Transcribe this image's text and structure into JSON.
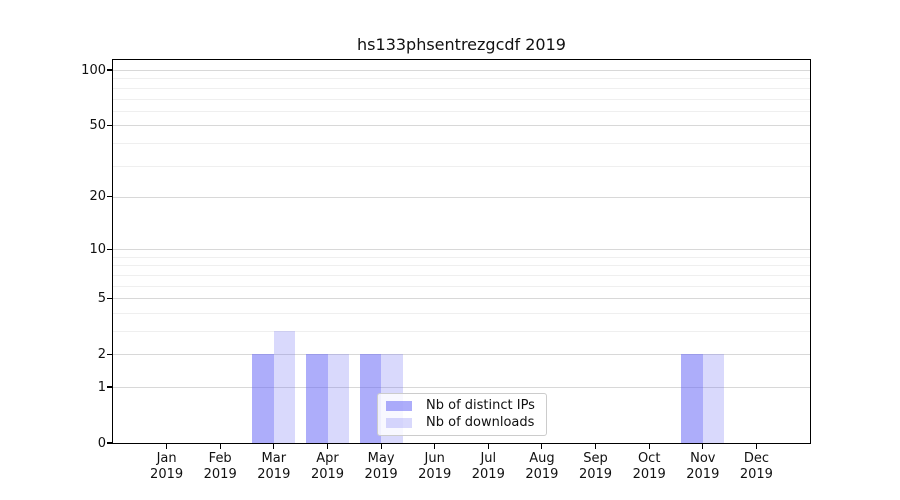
{
  "chart_data": {
    "type": "bar",
    "title": "hs133phsentrezgcdf 2019",
    "year_label": "2019",
    "categories": [
      "Jan",
      "Feb",
      "Mar",
      "Apr",
      "May",
      "Jun",
      "Jul",
      "Aug",
      "Sep",
      "Oct",
      "Nov",
      "Dec"
    ],
    "series": [
      {
        "name": "Nb of distinct IPs",
        "color": "rgba(105,105,245,0.55)",
        "values": [
          0,
          0,
          2,
          2,
          2,
          0,
          0,
          0,
          0,
          0,
          2,
          0
        ]
      },
      {
        "name": "Nb of downloads",
        "color": "rgba(105,105,245,0.25)",
        "values": [
          0,
          0,
          3,
          2,
          2,
          0,
          0,
          0,
          0,
          0,
          2,
          0
        ]
      }
    ],
    "yscale": "log1p",
    "ylim": [
      0,
      113
    ],
    "yticks": [
      100,
      50,
      20,
      10,
      5,
      2,
      1,
      0
    ],
    "minor_yticks": [
      3,
      4,
      6,
      7,
      8,
      9,
      30,
      40,
      60,
      70,
      80,
      90
    ],
    "grid": true,
    "legend_position": "lower center"
  },
  "colors": {
    "background": "#ffffff",
    "major_grid": "#d8d8d8",
    "minor_grid": "#efefef",
    "axis": "#000000",
    "text": "#111111",
    "legend_border": "#cccccc",
    "legend_bg": "rgba(255,255,255,0.8)"
  }
}
